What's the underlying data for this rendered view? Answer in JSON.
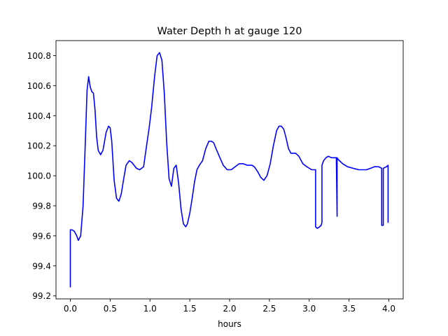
{
  "chart_data": {
    "type": "line",
    "title": "Water Depth h at gauge 120",
    "xlabel": "hours",
    "ylabel": "",
    "xlim": [
      -0.18,
      4.18
    ],
    "ylim": [
      99.18,
      100.9
    ],
    "xticks": [
      0.0,
      0.5,
      1.0,
      1.5,
      2.0,
      2.5,
      3.0,
      3.5,
      4.0
    ],
    "xtick_labels": [
      "0.0",
      "0.5",
      "1.0",
      "1.5",
      "2.0",
      "2.5",
      "3.0",
      "3.5",
      "4.0"
    ],
    "yticks": [
      99.2,
      99.4,
      99.6,
      99.8,
      100.0,
      100.2,
      100.4,
      100.6,
      100.8
    ],
    "ytick_labels": [
      "99.2",
      "99.4",
      "99.6",
      "99.8",
      "100.0",
      "100.2",
      "100.4",
      "100.6",
      "100.8"
    ],
    "grid": false,
    "series": [
      {
        "color": "#0000ff",
        "x": [
          0.0,
          0.0,
          0.02,
          0.05,
          0.08,
          0.1,
          0.13,
          0.16,
          0.19,
          0.21,
          0.23,
          0.25,
          0.27,
          0.29,
          0.31,
          0.33,
          0.35,
          0.38,
          0.41,
          0.45,
          0.48,
          0.5,
          0.52,
          0.55,
          0.58,
          0.61,
          0.64,
          0.67,
          0.7,
          0.74,
          0.77,
          0.8,
          0.83,
          0.87,
          0.92,
          0.96,
          0.99,
          1.02,
          1.06,
          1.09,
          1.12,
          1.15,
          1.18,
          1.21,
          1.24,
          1.27,
          1.3,
          1.33,
          1.36,
          1.39,
          1.42,
          1.45,
          1.47,
          1.5,
          1.53,
          1.56,
          1.59,
          1.62,
          1.66,
          1.7,
          1.74,
          1.77,
          1.8,
          1.83,
          1.87,
          1.92,
          1.97,
          2.02,
          2.07,
          2.12,
          2.17,
          2.22,
          2.25,
          2.28,
          2.31,
          2.35,
          2.39,
          2.43,
          2.47,
          2.51,
          2.55,
          2.59,
          2.62,
          2.65,
          2.68,
          2.71,
          2.74,
          2.77,
          2.8,
          2.83,
          2.87,
          2.92,
          2.97,
          3.03,
          3.08,
          3.08,
          3.1,
          3.13,
          3.15,
          3.16,
          3.16,
          3.18,
          3.21,
          3.24,
          3.28,
          3.32,
          3.34,
          3.35,
          3.35,
          3.36,
          3.38,
          3.42,
          3.48,
          3.55,
          3.62,
          3.67,
          3.72,
          3.77,
          3.82,
          3.87,
          3.91,
          3.91,
          3.93,
          3.93,
          3.97,
          3.99,
          3.99
        ],
        "values": [
          99.26,
          99.64,
          99.64,
          99.63,
          99.6,
          99.57,
          99.6,
          99.8,
          100.25,
          100.57,
          100.66,
          100.59,
          100.56,
          100.55,
          100.44,
          100.26,
          100.17,
          100.14,
          100.17,
          100.29,
          100.33,
          100.32,
          100.23,
          99.97,
          99.85,
          99.83,
          99.88,
          99.98,
          100.07,
          100.1,
          100.09,
          100.07,
          100.05,
          100.04,
          100.06,
          100.21,
          100.32,
          100.45,
          100.67,
          100.8,
          100.82,
          100.77,
          100.55,
          100.22,
          99.98,
          99.93,
          100.05,
          100.07,
          99.95,
          99.78,
          99.68,
          99.66,
          99.68,
          99.75,
          99.85,
          99.96,
          100.04,
          100.07,
          100.1,
          100.18,
          100.23,
          100.23,
          100.22,
          100.18,
          100.13,
          100.07,
          100.04,
          100.04,
          100.06,
          100.08,
          100.08,
          100.07,
          100.07,
          100.07,
          100.06,
          100.03,
          99.99,
          99.97,
          100.0,
          100.08,
          100.2,
          100.3,
          100.33,
          100.33,
          100.31,
          100.25,
          100.18,
          100.15,
          100.15,
          100.15,
          100.13,
          100.08,
          100.06,
          100.04,
          100.04,
          99.66,
          99.65,
          99.66,
          99.67,
          99.69,
          100.07,
          100.1,
          100.12,
          100.13,
          100.12,
          100.12,
          100.12,
          99.73,
          100.12,
          100.11,
          100.1,
          100.08,
          100.06,
          100.05,
          100.04,
          100.04,
          100.04,
          100.05,
          100.06,
          100.06,
          100.05,
          99.67,
          99.67,
          100.05,
          100.06,
          100.07,
          99.69
        ]
      }
    ]
  }
}
